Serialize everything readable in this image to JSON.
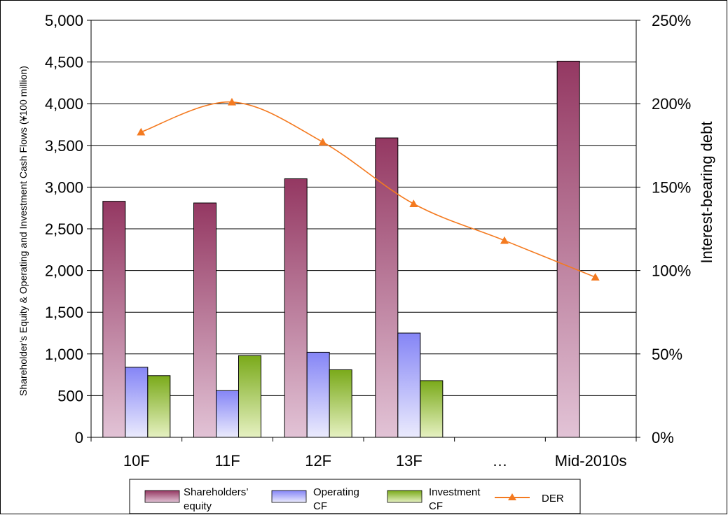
{
  "chart_data": {
    "type": "bar",
    "categories": [
      "10F",
      "11F",
      "12F",
      "13F",
      "…",
      "Mid-2010s"
    ],
    "series": [
      {
        "name": "Shareholders' equity",
        "values": [
          2830,
          2810,
          3100,
          3590,
          null,
          4510
        ],
        "color_top": "#943862",
        "color_bottom": "#e2c3d6"
      },
      {
        "name": "Operating CF",
        "values": [
          840,
          560,
          1020,
          1250,
          null,
          null
        ],
        "color_top": "#8585f6",
        "color_bottom": "#ebebfd"
      },
      {
        "name": "Investment CF",
        "values": [
          740,
          980,
          810,
          680,
          null,
          null
        ],
        "color_top": "#7aaa1a",
        "color_bottom": "#e6f1c2"
      }
    ],
    "line_series": {
      "name": "DER",
      "values": [
        183,
        201,
        177,
        140,
        118,
        96
      ],
      "color": "#f47a20",
      "axis": "right"
    },
    "ylabel": "Shareholder's Equity & Operating and Investment Cash Flows (¥100 million)",
    "ylabel_right": "Interest-bearing debt",
    "ylim": [
      0,
      5000
    ],
    "ylim_right": [
      0,
      250
    ],
    "yticks": [
      "0",
      "500",
      "1,000",
      "1,500",
      "2,000",
      "2,500",
      "3,000",
      "3,500",
      "4,000",
      "4,500",
      "5,000"
    ],
    "yticks_right": [
      "0%",
      "50%",
      "100%",
      "150%",
      "200%",
      "250%"
    ],
    "grid": true,
    "legend_position": "bottom",
    "legend": [
      {
        "label_line1": "Shareholders’",
        "label_line2": "equity"
      },
      {
        "label_line1": "Operating",
        "label_line2": "CF"
      },
      {
        "label_line1": "Investment",
        "label_line2": "CF"
      },
      {
        "label_line1": "DER",
        "label_line2": ""
      }
    ]
  }
}
